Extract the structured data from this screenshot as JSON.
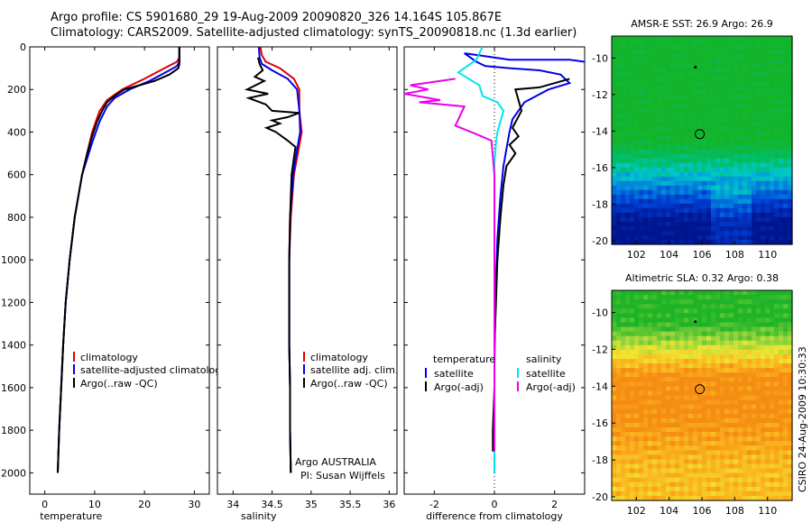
{
  "titles": {
    "line1": "Argo profile: CS 5901680_29 19-Aug-2009 20090820_326 14.164S 105.867E",
    "line2": "Climatology: CARS2009. Satellite-adjusted climatology: synTS_20090818.nc (1.3d earlier)"
  },
  "side_label": "CSIRO 24-Aug-2009 10:30:33",
  "chart_data": [
    {
      "type": "line",
      "xlabel": "temperature",
      "ylabel": "",
      "xlim": [
        -3,
        33
      ],
      "ylim": [
        2100,
        0
      ],
      "xticks": [
        0,
        10,
        20,
        30
      ],
      "yticks": [
        0,
        200,
        400,
        600,
        800,
        1000,
        1200,
        1400,
        1600,
        1800,
        2000
      ],
      "legend": [
        "climatology",
        "satellite-adjusted climatology",
        "Argo(..raw -QC)"
      ],
      "series": [
        {
          "name": "climatology",
          "color": "#dd0000",
          "points": [
            [
              27,
              0
            ],
            [
              27,
              50
            ],
            [
              26.5,
              70
            ],
            [
              24,
              100
            ],
            [
              20,
              150
            ],
            [
              15.5,
              200
            ],
            [
              12.5,
              250
            ],
            [
              11,
              300
            ],
            [
              9.5,
              400
            ],
            [
              7.5,
              600
            ],
            [
              6,
              800
            ],
            [
              5,
              1000
            ],
            [
              4.2,
              1200
            ],
            [
              3.7,
              1400
            ],
            [
              3.3,
              1600
            ],
            [
              2.9,
              1800
            ],
            [
              2.6,
              2000
            ]
          ]
        },
        {
          "name": "satellite-adjusted climatology",
          "color": "#0000ee",
          "points": [
            [
              27,
              0
            ],
            [
              27,
              70
            ],
            [
              26.5,
              90
            ],
            [
              25,
              110
            ],
            [
              21,
              160
            ],
            [
              17,
              200
            ],
            [
              14,
              240
            ],
            [
              12.5,
              280
            ],
            [
              11,
              350
            ],
            [
              9.5,
              450
            ],
            [
              7.5,
              600
            ],
            [
              6,
              800
            ],
            [
              5,
              1000
            ],
            [
              4.2,
              1200
            ],
            [
              3.7,
              1400
            ],
            [
              3.3,
              1600
            ],
            [
              2.9,
              1800
            ],
            [
              2.6,
              2000
            ]
          ]
        },
        {
          "name": "Argo(..raw -QC)",
          "color": "#000000",
          "points": [
            [
              27,
              0
            ],
            [
              27,
              60
            ],
            [
              27,
              80
            ],
            [
              26.8,
              100
            ],
            [
              25,
              130
            ],
            [
              22,
              160
            ],
            [
              19,
              180
            ],
            [
              16,
              200
            ],
            [
              14,
              230
            ],
            [
              12.5,
              260
            ],
            [
              11.5,
              300
            ],
            [
              10.5,
              350
            ],
            [
              9.5,
              420
            ],
            [
              8.5,
              500
            ],
            [
              7.5,
              600
            ],
            [
              6,
              800
            ],
            [
              5,
              1000
            ],
            [
              4.2,
              1200
            ],
            [
              3.7,
              1400
            ],
            [
              3.3,
              1600
            ],
            [
              2.9,
              1800
            ],
            [
              2.6,
              2000
            ]
          ]
        }
      ]
    },
    {
      "type": "line",
      "xlabel": "salinity",
      "ylabel": "",
      "xlim": [
        33.8,
        36.1
      ],
      "ylim": [
        2100,
        0
      ],
      "xticks": [
        34,
        34.5,
        35,
        35.5,
        36
      ],
      "yticks": [
        0,
        200,
        400,
        600,
        800,
        1000,
        1200,
        1400,
        1600,
        1800,
        2000
      ],
      "legend": [
        "climatology",
        "satellite adj. clim.",
        "Argo(..raw -QC)"
      ],
      "annotation": [
        "Argo AUSTRALIA",
        "PI: Susan Wijffels"
      ],
      "series": [
        {
          "name": "climatology",
          "color": "#dd0000",
          "points": [
            [
              34.35,
              0
            ],
            [
              34.37,
              40
            ],
            [
              34.42,
              70
            ],
            [
              34.6,
              100
            ],
            [
              34.78,
              150
            ],
            [
              34.85,
              200
            ],
            [
              34.85,
              300
            ],
            [
              34.88,
              400
            ],
            [
              34.84,
              480
            ],
            [
              34.78,
              600
            ],
            [
              34.74,
              800
            ],
            [
              34.72,
              1000
            ],
            [
              34.72,
              1200
            ],
            [
              34.72,
              1400
            ],
            [
              34.73,
              1600
            ],
            [
              34.73,
              1800
            ],
            [
              34.74,
              2000
            ]
          ]
        },
        {
          "name": "satellite adj. clim.",
          "color": "#0000ee",
          "points": [
            [
              34.33,
              0
            ],
            [
              34.34,
              50
            ],
            [
              34.37,
              80
            ],
            [
              34.5,
              110
            ],
            [
              34.7,
              150
            ],
            [
              34.82,
              200
            ],
            [
              34.85,
              300
            ],
            [
              34.86,
              400
            ],
            [
              34.82,
              480
            ],
            [
              34.77,
              600
            ],
            [
              34.73,
              800
            ],
            [
              34.72,
              1000
            ],
            [
              34.72,
              1200
            ],
            [
              34.72,
              1400
            ],
            [
              34.73,
              1600
            ],
            [
              34.73,
              1800
            ],
            [
              34.74,
              2000
            ]
          ]
        },
        {
          "name": "Argo(..raw -QC)",
          "color": "#000000",
          "points": [
            [
              34.32,
              50
            ],
            [
              34.34,
              80
            ],
            [
              34.38,
              110
            ],
            [
              34.28,
              140
            ],
            [
              34.4,
              160
            ],
            [
              34.18,
              200
            ],
            [
              34.45,
              220
            ],
            [
              34.2,
              240
            ],
            [
              34.42,
              270
            ],
            [
              34.5,
              300
            ],
            [
              34.85,
              310
            ],
            [
              34.7,
              330
            ],
            [
              34.5,
              345
            ],
            [
              34.6,
              360
            ],
            [
              34.43,
              380
            ],
            [
              34.55,
              400
            ],
            [
              34.7,
              440
            ],
            [
              34.8,
              470
            ],
            [
              34.78,
              520
            ],
            [
              34.75,
              600
            ],
            [
              34.73,
              800
            ],
            [
              34.72,
              1000
            ],
            [
              34.72,
              1200
            ],
            [
              34.72,
              1400
            ],
            [
              34.73,
              1600
            ],
            [
              34.73,
              1800
            ],
            [
              34.74,
              2000
            ]
          ]
        }
      ]
    },
    {
      "type": "line",
      "xlabel": "difference from climatology",
      "ylabel": "",
      "xlim": [
        -3,
        3
      ],
      "ylim": [
        2100,
        0
      ],
      "xticks": [
        -2,
        0,
        2
      ],
      "yticks": [
        0,
        200,
        400,
        600,
        800,
        1000,
        1200,
        1400,
        1600,
        1800,
        2000
      ],
      "legend_headers": [
        "temperature",
        "salinity"
      ],
      "legend": [
        "satellite",
        "Argo(-adj)",
        "satellite",
        "Argo(-adj)"
      ],
      "series": [
        {
          "name": "temperature satellite",
          "color": "#0000ee",
          "points": [
            [
              3,
              70
            ],
            [
              2.5,
              60
            ],
            [
              1.5,
              60
            ],
            [
              0.5,
              60
            ],
            [
              -0.5,
              40
            ],
            [
              -1,
              30
            ],
            [
              -0.6,
              70
            ],
            [
              -0.3,
              90
            ],
            [
              0.5,
              100
            ],
            [
              1.5,
              110
            ],
            [
              2.2,
              130
            ],
            [
              2.5,
              170
            ],
            [
              1.8,
              200
            ],
            [
              1,
              260
            ],
            [
              0.6,
              340
            ],
            [
              0.5,
              400
            ],
            [
              0.4,
              480
            ],
            [
              0.3,
              560
            ],
            [
              0.2,
              700
            ],
            [
              0.1,
              900
            ],
            [
              0.05,
              1100
            ],
            [
              0.02,
              1300
            ],
            [
              0,
              1500
            ],
            [
              0,
              1700
            ],
            [
              0,
              1900
            ],
            [
              0,
              2000
            ]
          ]
        },
        {
          "name": "temperature Argo(-adj)",
          "color": "#000000",
          "points": [
            [
              2.5,
              150
            ],
            [
              1.5,
              190
            ],
            [
              0.7,
              200
            ],
            [
              0.9,
              300
            ],
            [
              0.6,
              380
            ],
            [
              0.8,
              420
            ],
            [
              0.5,
              460
            ],
            [
              0.7,
              500
            ],
            [
              0.4,
              560
            ],
            [
              0.3,
              650
            ],
            [
              0.2,
              800
            ],
            [
              0.1,
              1000
            ],
            [
              0.05,
              1200
            ],
            [
              0,
              1400
            ],
            [
              0,
              1600
            ],
            [
              -0.05,
              1800
            ],
            [
              -0.05,
              1900
            ]
          ]
        },
        {
          "name": "salinity satellite",
          "color": "#00e5ee",
          "points": [
            [
              -0.4,
              0
            ],
            [
              -0.6,
              60
            ],
            [
              -1.2,
              120
            ],
            [
              -0.5,
              180
            ],
            [
              -0.4,
              230
            ],
            [
              0.1,
              260
            ],
            [
              0.3,
              300
            ],
            [
              0.2,
              350
            ],
            [
              0.1,
              400
            ],
            [
              0.05,
              450
            ],
            [
              0,
              550
            ],
            [
              0,
              700
            ],
            [
              0,
              1000
            ],
            [
              0,
              1400
            ],
            [
              0,
              1800
            ],
            [
              0,
              2000
            ]
          ]
        },
        {
          "name": "salinity Argo(-adj)",
          "color": "#ee00ee",
          "points": [
            [
              -1.3,
              150
            ],
            [
              -2.8,
              180
            ],
            [
              -2.2,
              200
            ],
            [
              -3,
              220
            ],
            [
              -1.8,
              250
            ],
            [
              -2.5,
              260
            ],
            [
              -1,
              280
            ],
            [
              -1.3,
              370
            ],
            [
              -0.6,
              410
            ],
            [
              -0.1,
              440
            ],
            [
              0,
              600
            ],
            [
              0,
              1000
            ],
            [
              0,
              1400
            ],
            [
              0,
              1800
            ],
            [
              0,
              1900
            ]
          ]
        }
      ]
    },
    {
      "type": "heatmap",
      "title": "AMSR-E SST: 26.9 Argo: 26.9",
      "xlim": [
        100.5,
        111.5
      ],
      "ylim": [
        -20.2,
        -8.8
      ],
      "xticks": [
        102,
        104,
        106,
        108,
        110
      ],
      "yticks": [
        -10,
        -12,
        -14,
        -16,
        -18,
        -20
      ],
      "float_position": [
        105.867,
        -14.164
      ]
    },
    {
      "type": "heatmap",
      "title": "Altimetric SLA: 0.32 Argo: 0.38",
      "xlim": [
        100.5,
        111.5
      ],
      "ylim": [
        -20.2,
        -8.8
      ],
      "xticks": [
        102,
        104,
        106,
        108,
        110
      ],
      "yticks": [
        -10,
        -12,
        -14,
        -16,
        -18,
        -20
      ],
      "float_position": [
        105.867,
        -14.164
      ]
    }
  ]
}
